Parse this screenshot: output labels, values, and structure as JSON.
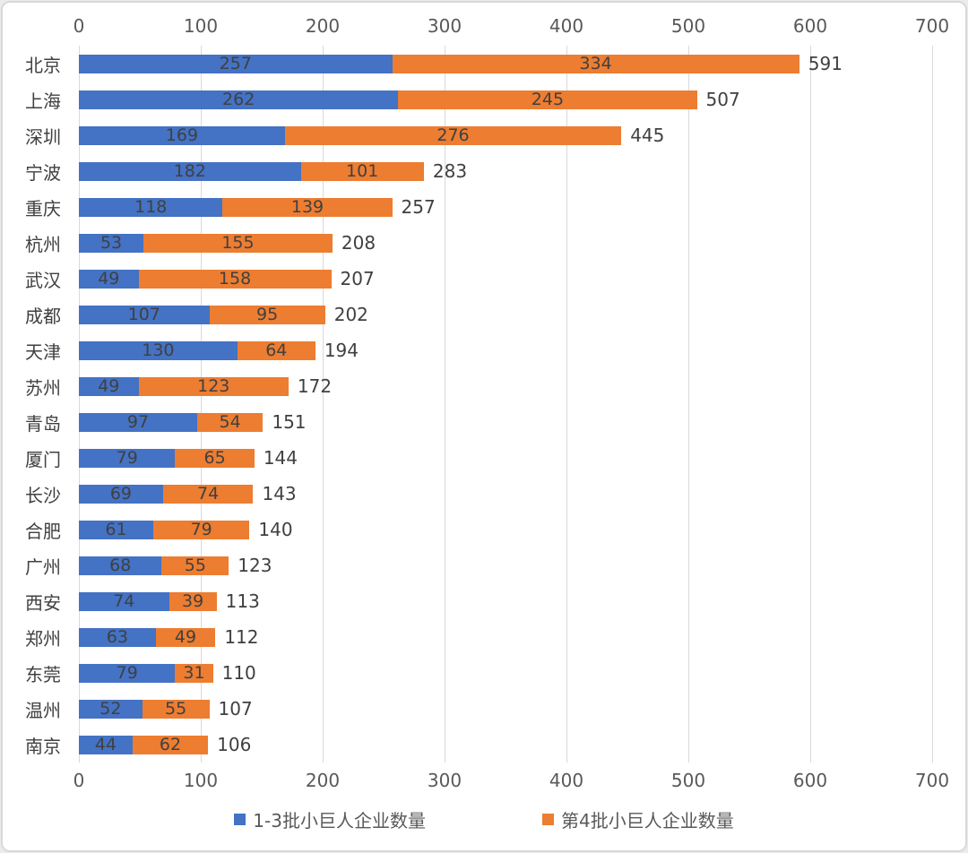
{
  "chart_data": {
    "type": "bar",
    "orientation": "horizontal",
    "stacked": true,
    "title": "",
    "xlabel": "",
    "ylabel": "",
    "xlim": [
      0,
      700
    ],
    "x_ticks": [
      0,
      100,
      200,
      300,
      400,
      500,
      600,
      700
    ],
    "axis_label_positions": [
      "top",
      "bottom"
    ],
    "grid": true,
    "legend_position": "bottom",
    "categories": [
      "北京",
      "上海",
      "深圳",
      "宁波",
      "重庆",
      "杭州",
      "武汉",
      "成都",
      "天津",
      "苏州",
      "青岛",
      "厦门",
      "长沙",
      "合肥",
      "广州",
      "西安",
      "郑州",
      "东莞",
      "温州",
      "南京"
    ],
    "series": [
      {
        "name": "1-3批小巨人企业数量",
        "color": "#4472C4",
        "values": [
          257,
          262,
          169,
          182,
          118,
          53,
          49,
          107,
          130,
          49,
          97,
          79,
          69,
          61,
          68,
          74,
          63,
          79,
          52,
          44
        ]
      },
      {
        "name": "第4批小巨人企业数量",
        "color": "#ED7D31",
        "values": [
          334,
          245,
          276,
          101,
          139,
          155,
          158,
          95,
          64,
          123,
          54,
          65,
          74,
          79,
          55,
          39,
          49,
          31,
          55,
          62
        ]
      }
    ],
    "totals": [
      591,
      507,
      445,
      283,
      257,
      208,
      207,
      202,
      194,
      172,
      151,
      144,
      143,
      140,
      123,
      113,
      112,
      110,
      107,
      106
    ]
  },
  "colors": {
    "series1": "#4472C4",
    "series2": "#ED7D31",
    "value_label": "#404040",
    "category_label": "#404040",
    "tick_label": "#595959",
    "gridline": "#d9d9d9",
    "frame_border": "#d9d9d9",
    "background": "#ffffff"
  }
}
